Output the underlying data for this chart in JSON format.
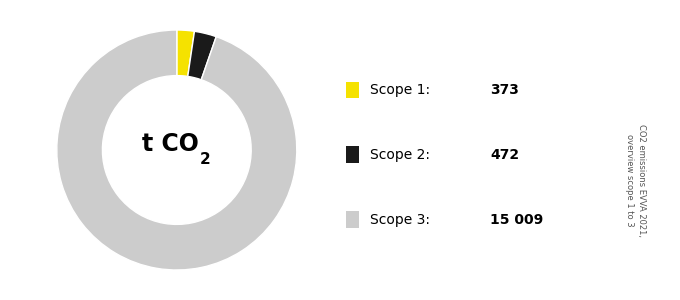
{
  "slices": [
    373,
    472,
    15009
  ],
  "labels": [
    "Scope 1",
    "Scope 2",
    "Scope 3"
  ],
  "values_str": [
    "373",
    "472",
    "15 009"
  ],
  "colors": [
    "#f5e200",
    "#1a1a1a",
    "#cccccc"
  ],
  "center_text": "t CO",
  "center_sub": "2",
  "side_text": "CO2 emissions EVVA 2021,\noverview scope 1 to 3",
  "bg_color": "#ffffff",
  "donut_width": 0.38,
  "startangle": 90,
  "legend_labels_full": [
    "Scope 1: ",
    "Scope 2: ",
    "Scope 3: "
  ]
}
